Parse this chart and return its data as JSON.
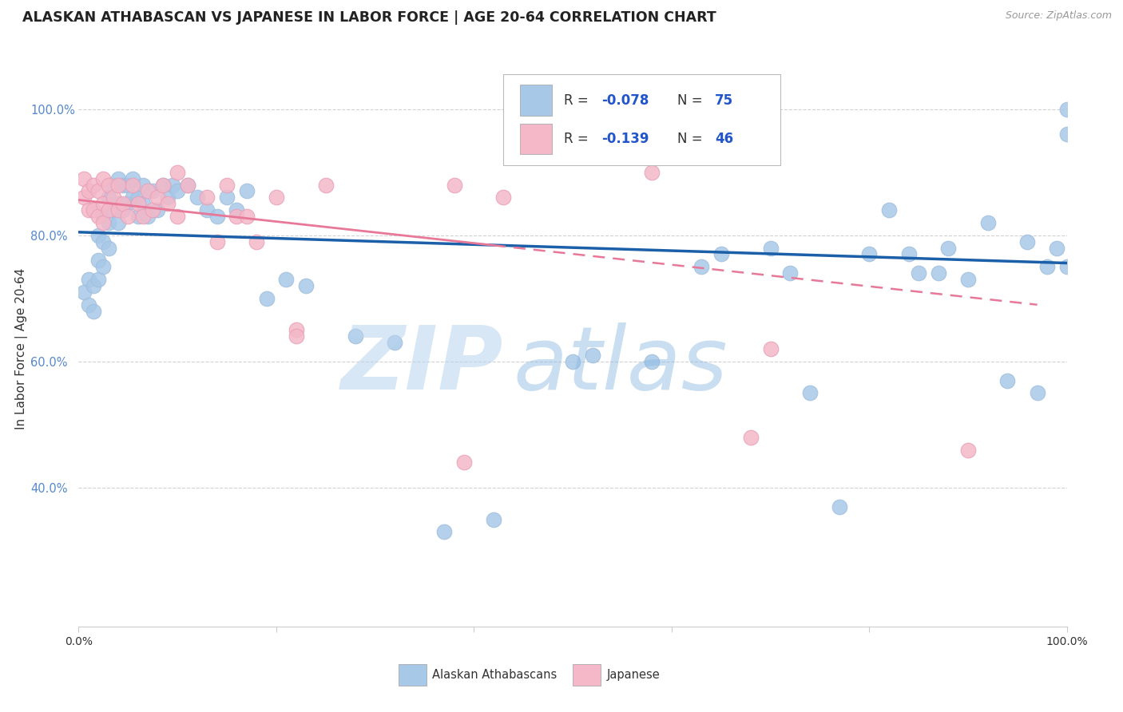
{
  "title": "ALASKAN ATHABASCAN VS JAPANESE IN LABOR FORCE | AGE 20-64 CORRELATION CHART",
  "source": "Source: ZipAtlas.com",
  "ylabel": "In Labor Force | Age 20-64",
  "xlim": [
    0,
    1
  ],
  "ylim": [
    0.18,
    1.06
  ],
  "yticks": [
    0.4,
    0.6,
    0.8,
    1.0
  ],
  "ytick_labels": [
    "40.0%",
    "60.0%",
    "80.0%",
    "100.0%"
  ],
  "xtick_labels": [
    "0.0%",
    "",
    "",
    "",
    "",
    "100.0%"
  ],
  "r1": "-0.078",
  "n1": "75",
  "r2": "-0.139",
  "n2": "46",
  "blue_color": "#a8c8e8",
  "blue_edge_color": "#a0bedd",
  "pink_color": "#f4b8c8",
  "pink_edge_color": "#e8a0b8",
  "blue_line_color": "#1a5fa8",
  "pink_line_color": "#e87898",
  "text_color": "#333333",
  "axis_color": "#5588cc",
  "grid_color": "#cccccc",
  "watermark_color": "#b8d4ee",
  "blue_x": [
    0.005,
    0.01,
    0.01,
    0.015,
    0.015,
    0.02,
    0.02,
    0.02,
    0.025,
    0.025,
    0.025,
    0.03,
    0.03,
    0.03,
    0.035,
    0.035,
    0.04,
    0.04,
    0.04,
    0.045,
    0.045,
    0.05,
    0.05,
    0.055,
    0.055,
    0.06,
    0.06,
    0.065,
    0.065,
    0.07,
    0.075,
    0.08,
    0.085,
    0.09,
    0.095,
    0.1,
    0.11,
    0.12,
    0.13,
    0.14,
    0.15,
    0.16,
    0.17,
    0.19,
    0.21,
    0.23,
    0.28,
    0.32,
    0.37,
    0.42,
    0.5,
    0.52,
    0.58,
    0.63,
    0.65,
    0.7,
    0.72,
    0.74,
    0.77,
    0.8,
    0.82,
    0.84,
    0.85,
    0.87,
    0.88,
    0.9,
    0.92,
    0.94,
    0.96,
    0.97,
    0.98,
    0.99,
    1.0,
    1.0,
    1.0
  ],
  "blue_y": [
    0.71,
    0.73,
    0.69,
    0.68,
    0.72,
    0.8,
    0.76,
    0.73,
    0.83,
    0.79,
    0.75,
    0.86,
    0.82,
    0.78,
    0.88,
    0.84,
    0.89,
    0.85,
    0.82,
    0.88,
    0.84,
    0.88,
    0.85,
    0.89,
    0.86,
    0.86,
    0.83,
    0.88,
    0.85,
    0.83,
    0.87,
    0.84,
    0.88,
    0.86,
    0.88,
    0.87,
    0.88,
    0.86,
    0.84,
    0.83,
    0.86,
    0.84,
    0.87,
    0.7,
    0.73,
    0.72,
    0.64,
    0.63,
    0.33,
    0.35,
    0.6,
    0.61,
    0.6,
    0.75,
    0.77,
    0.78,
    0.74,
    0.55,
    0.37,
    0.77,
    0.84,
    0.77,
    0.74,
    0.74,
    0.78,
    0.73,
    0.82,
    0.57,
    0.79,
    0.55,
    0.75,
    0.78,
    1.0,
    0.96,
    0.75
  ],
  "pink_x": [
    0.005,
    0.005,
    0.01,
    0.01,
    0.015,
    0.015,
    0.02,
    0.02,
    0.025,
    0.025,
    0.025,
    0.03,
    0.03,
    0.035,
    0.04,
    0.04,
    0.045,
    0.05,
    0.055,
    0.06,
    0.065,
    0.07,
    0.075,
    0.08,
    0.085,
    0.09,
    0.1,
    0.1,
    0.11,
    0.13,
    0.14,
    0.15,
    0.16,
    0.17,
    0.18,
    0.2,
    0.22,
    0.22,
    0.25,
    0.38,
    0.39,
    0.43,
    0.58,
    0.68,
    0.7,
    0.9
  ],
  "pink_y": [
    0.89,
    0.86,
    0.87,
    0.84,
    0.88,
    0.84,
    0.87,
    0.83,
    0.89,
    0.85,
    0.82,
    0.88,
    0.84,
    0.86,
    0.88,
    0.84,
    0.85,
    0.83,
    0.88,
    0.85,
    0.83,
    0.87,
    0.84,
    0.86,
    0.88,
    0.85,
    0.9,
    0.83,
    0.88,
    0.86,
    0.79,
    0.88,
    0.83,
    0.83,
    0.79,
    0.86,
    0.65,
    0.64,
    0.88,
    0.88,
    0.44,
    0.86,
    0.9,
    0.48,
    0.62,
    0.46
  ],
  "blue_trend": [
    0.0,
    0.805,
    1.0,
    0.756
  ],
  "pink_trend": [
    0.0,
    0.856,
    0.97,
    0.69
  ]
}
